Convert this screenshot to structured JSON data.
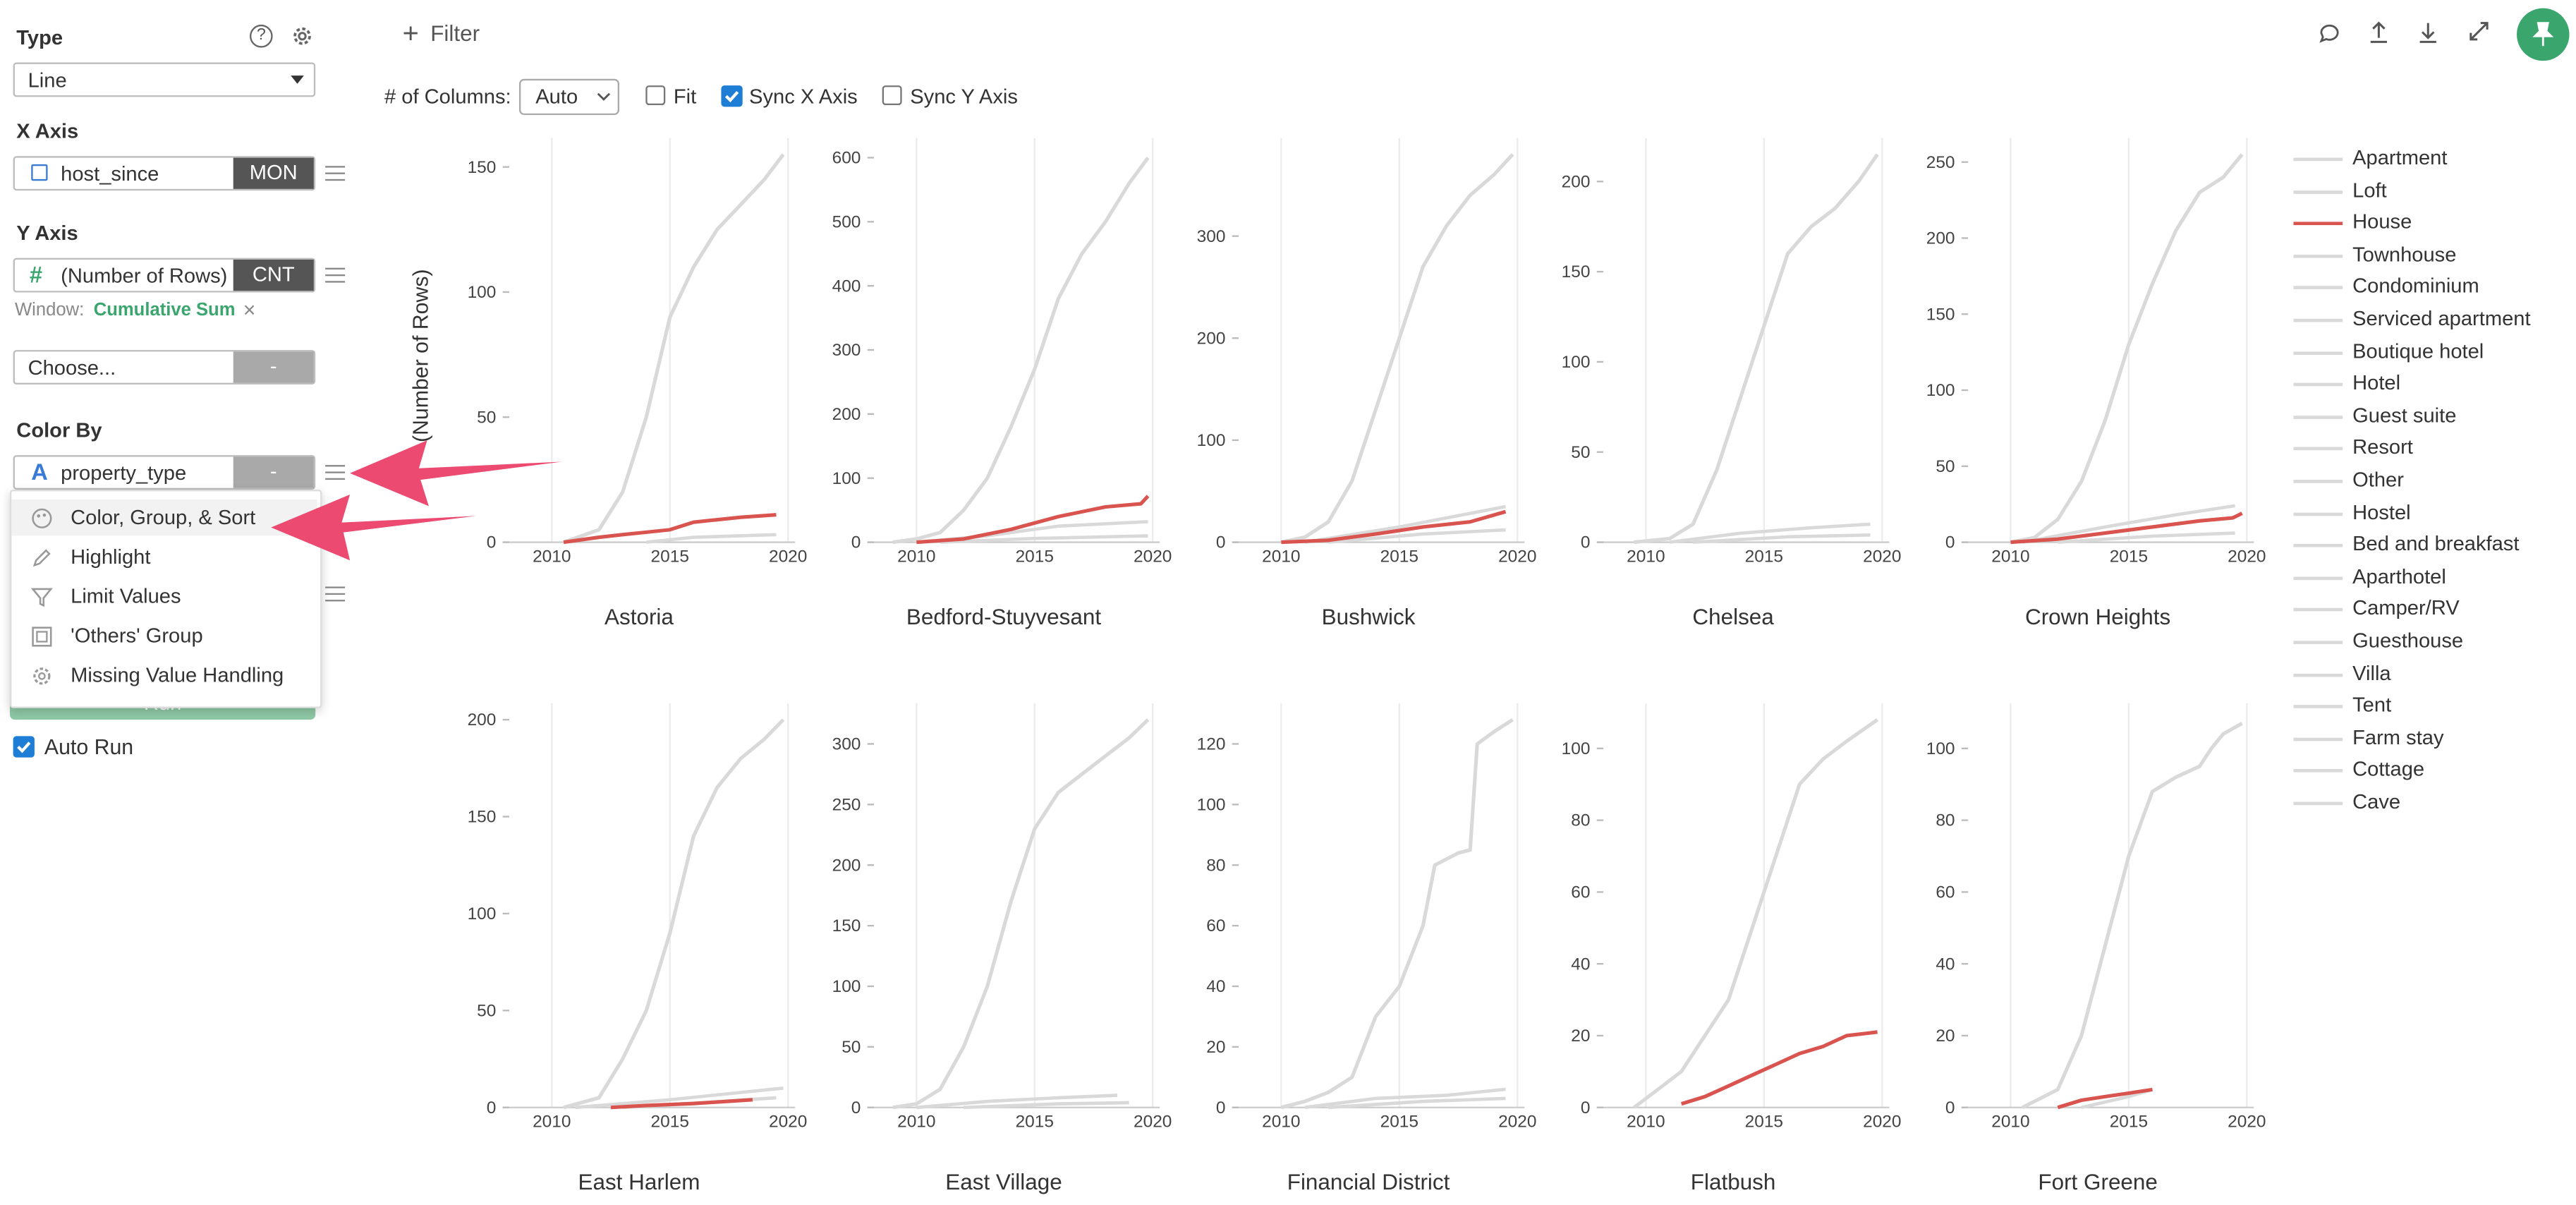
{
  "sidebar": {
    "type_title": "Type",
    "type_value": "Line",
    "x_axis_title": "X Axis",
    "x_field": "host_since",
    "x_agg": "MON",
    "y_axis_title": "Y Axis",
    "y_field": "(Number of Rows)",
    "y_agg": "CNT",
    "window_label": "Window:",
    "window_value": "Cumulative Sum",
    "window_clear": "×",
    "choose_placeholder": "Choose...",
    "choose_agg": "-",
    "color_by_title": "Color By",
    "color_field": "property_type",
    "color_agg": "-",
    "run_label": "Run",
    "auto_run_label": "Auto Run"
  },
  "menu": {
    "items": [
      {
        "label": "Color, Group, & Sort",
        "icon": "palette-icon"
      },
      {
        "label": "Highlight",
        "icon": "pencil-icon"
      },
      {
        "label": "Limit Values",
        "icon": "filter-icon"
      },
      {
        "label": "'Others' Group",
        "icon": "group-icon"
      },
      {
        "label": "Missing Value Handling",
        "icon": "gear-icon"
      }
    ]
  },
  "toolbar": {
    "filter_label": "Filter",
    "columns_label": "# of Columns:",
    "columns_value": "Auto",
    "fit_label": "Fit",
    "sync_x_label": "Sync X Axis",
    "sync_y_label": "Sync Y Axis",
    "fit_checked": false,
    "sync_x_checked": true,
    "sync_y_checked": false
  },
  "colors": {
    "accent_green": "#3aa66e",
    "highlight_red": "#d9534f",
    "other_grey": "#d9d9d9",
    "annotation_pink": "#ec4a70"
  },
  "chart_data": {
    "type": "line",
    "ylabel": "(Number of Rows)",
    "x_ticks": [
      2010,
      2015,
      2020
    ],
    "highlight_series": "House",
    "legend": [
      "Apartment",
      "Loft",
      "House",
      "Townhouse",
      "Condominium",
      "Serviced apartment",
      "Boutique hotel",
      "Hotel",
      "Guest suite",
      "Resort",
      "Other",
      "Hostel",
      "Bed and breakfast",
      "Aparthotel",
      "Camper/RV",
      "Guesthouse",
      "Villa",
      "Tent",
      "Farm stay",
      "Cottage",
      "Cave"
    ],
    "panels": [
      {
        "title": "Astoria",
        "y_ticks": [
          0,
          50,
          100,
          150
        ],
        "ymax": 155,
        "apartment": [
          [
            2010.5,
            0
          ],
          [
            2012,
            5
          ],
          [
            2013,
            20
          ],
          [
            2014,
            50
          ],
          [
            2015,
            90
          ],
          [
            2016,
            110
          ],
          [
            2017,
            125
          ],
          [
            2018,
            135
          ],
          [
            2019,
            145
          ],
          [
            2019.8,
            155
          ]
        ],
        "house": [
          [
            2010.5,
            0
          ],
          [
            2012,
            2
          ],
          [
            2013,
            3
          ],
          [
            2014,
            4
          ],
          [
            2015,
            5
          ],
          [
            2016,
            8
          ],
          [
            2017,
            9
          ],
          [
            2018,
            10
          ],
          [
            2019.5,
            11
          ]
        ],
        "others": [
          [
            [
              2014,
              0
            ],
            [
              2016,
              2
            ],
            [
              2019.5,
              3
            ]
          ]
        ]
      },
      {
        "title": "Bedford-Stuyvesant",
        "y_ticks": [
          0,
          100,
          200,
          300,
          400,
          500,
          600
        ],
        "ymax": 605,
        "apartment": [
          [
            2009,
            0
          ],
          [
            2010,
            5
          ],
          [
            2011,
            15
          ],
          [
            2012,
            50
          ],
          [
            2013,
            100
          ],
          [
            2014,
            180
          ],
          [
            2015,
            270
          ],
          [
            2016,
            380
          ],
          [
            2017,
            450
          ],
          [
            2018,
            500
          ],
          [
            2019,
            560
          ],
          [
            2019.8,
            600
          ]
        ],
        "house": [
          [
            2010,
            0
          ],
          [
            2012,
            5
          ],
          [
            2014,
            20
          ],
          [
            2016,
            40
          ],
          [
            2018,
            55
          ],
          [
            2019.5,
            60
          ],
          [
            2019.8,
            72
          ]
        ],
        "others": [
          [
            [
              2010,
              0
            ],
            [
              2013,
              10
            ],
            [
              2016,
              25
            ],
            [
              2019.8,
              32
            ]
          ],
          [
            [
              2011,
              0
            ],
            [
              2015,
              6
            ],
            [
              2019.8,
              10
            ]
          ]
        ]
      },
      {
        "title": "Bushwick",
        "y_ticks": [
          0,
          100,
          200,
          300
        ],
        "ymax": 380,
        "apartment": [
          [
            2010,
            0
          ],
          [
            2011,
            5
          ],
          [
            2012,
            20
          ],
          [
            2013,
            60
          ],
          [
            2014,
            130
          ],
          [
            2015,
            200
          ],
          [
            2016,
            270
          ],
          [
            2017,
            310
          ],
          [
            2018,
            340
          ],
          [
            2019,
            360
          ],
          [
            2019.8,
            380
          ]
        ],
        "house": [
          [
            2010,
            0
          ],
          [
            2012,
            2
          ],
          [
            2014,
            8
          ],
          [
            2016,
            15
          ],
          [
            2018,
            20
          ],
          [
            2019.5,
            30
          ]
        ],
        "others": [
          [
            [
              2011,
              0
            ],
            [
              2015,
              15
            ],
            [
              2019.5,
              35
            ]
          ],
          [
            [
              2012,
              0
            ],
            [
              2016,
              8
            ],
            [
              2019.5,
              12
            ]
          ]
        ]
      },
      {
        "title": "Chelsea",
        "y_ticks": [
          0,
          50,
          100,
          150,
          200
        ],
        "ymax": 215,
        "apartment": [
          [
            2009.5,
            0
          ],
          [
            2011,
            2
          ],
          [
            2012,
            10
          ],
          [
            2013,
            40
          ],
          [
            2014,
            80
          ],
          [
            2015,
            120
          ],
          [
            2016,
            160
          ],
          [
            2017,
            175
          ],
          [
            2018,
            185
          ],
          [
            2019,
            200
          ],
          [
            2019.8,
            215
          ]
        ],
        "house": [],
        "others": [
          [
            [
              2011,
              0
            ],
            [
              2014,
              5
            ],
            [
              2017,
              8
            ],
            [
              2019.5,
              10
            ]
          ],
          [
            [
              2012,
              0
            ],
            [
              2016,
              3
            ],
            [
              2019.5,
              4
            ]
          ]
        ]
      },
      {
        "title": "Crown Heights",
        "y_ticks": [
          0,
          50,
          100,
          150,
          200,
          250
        ],
        "ymax": 255,
        "apartment": [
          [
            2010,
            0
          ],
          [
            2011,
            3
          ],
          [
            2012,
            15
          ],
          [
            2013,
            40
          ],
          [
            2014,
            80
          ],
          [
            2015,
            130
          ],
          [
            2016,
            170
          ],
          [
            2017,
            205
          ],
          [
            2018,
            230
          ],
          [
            2019,
            240
          ],
          [
            2019.8,
            255
          ]
        ],
        "house": [
          [
            2010,
            0
          ],
          [
            2012,
            2
          ],
          [
            2014,
            6
          ],
          [
            2016,
            10
          ],
          [
            2018,
            14
          ],
          [
            2019.4,
            16
          ],
          [
            2019.8,
            19
          ]
        ],
        "others": [
          [
            [
              2010.5,
              0
            ],
            [
              2014,
              10
            ],
            [
              2017,
              18
            ],
            [
              2019.5,
              24
            ]
          ],
          [
            [
              2012,
              0
            ],
            [
              2016,
              4
            ],
            [
              2019.5,
              6
            ]
          ]
        ]
      },
      {
        "title": "East Harlem",
        "y_ticks": [
          0,
          50,
          100,
          150,
          200
        ],
        "ymax": 200,
        "apartment": [
          [
            2010.5,
            0
          ],
          [
            2012,
            5
          ],
          [
            2013,
            25
          ],
          [
            2014,
            50
          ],
          [
            2015,
            90
          ],
          [
            2016,
            140
          ],
          [
            2017,
            165
          ],
          [
            2018,
            180
          ],
          [
            2019,
            190
          ],
          [
            2019.8,
            200
          ]
        ],
        "house": [
          [
            2012.5,
            0
          ],
          [
            2014,
            1
          ],
          [
            2016,
            2
          ],
          [
            2018.5,
            4
          ]
        ],
        "others": [
          [
            [
              2011,
              0
            ],
            [
              2015,
              4
            ],
            [
              2019.8,
              10
            ]
          ],
          [
            [
              2013,
              0
            ],
            [
              2017,
              3
            ],
            [
              2019.5,
              5
            ]
          ]
        ]
      },
      {
        "title": "East Village",
        "y_ticks": [
          0,
          50,
          100,
          150,
          200,
          250,
          300
        ],
        "ymax": 320,
        "apartment": [
          [
            2009,
            0
          ],
          [
            2010,
            3
          ],
          [
            2011,
            15
          ],
          [
            2012,
            50
          ],
          [
            2013,
            100
          ],
          [
            2014,
            170
          ],
          [
            2015,
            230
          ],
          [
            2016,
            260
          ],
          [
            2017,
            275
          ],
          [
            2018,
            290
          ],
          [
            2019,
            305
          ],
          [
            2019.8,
            320
          ]
        ],
        "house": [],
        "others": [
          [
            [
              2010,
              0
            ],
            [
              2013,
              5
            ],
            [
              2016,
              8
            ],
            [
              2018.5,
              10
            ]
          ],
          [
            [
              2012,
              0
            ],
            [
              2016,
              3
            ],
            [
              2019,
              4
            ]
          ]
        ]
      },
      {
        "title": "Financial District",
        "y_ticks": [
          0,
          20,
          40,
          60,
          80,
          100,
          120
        ],
        "ymax": 128,
        "apartment": [
          [
            2010,
            0
          ],
          [
            2011,
            2
          ],
          [
            2012,
            5
          ],
          [
            2013,
            10
          ],
          [
            2014,
            30
          ],
          [
            2015,
            40
          ],
          [
            2016,
            60
          ],
          [
            2016.5,
            80
          ],
          [
            2017.5,
            84
          ],
          [
            2018,
            85
          ],
          [
            2018.3,
            120
          ],
          [
            2019,
            124
          ],
          [
            2019.8,
            128
          ]
        ],
        "house": [],
        "others": [
          [
            [
              2011,
              0
            ],
            [
              2014,
              3
            ],
            [
              2017,
              4
            ],
            [
              2019.5,
              6
            ]
          ],
          [
            [
              2012,
              0
            ],
            [
              2016,
              2
            ],
            [
              2019.5,
              3
            ]
          ]
        ]
      },
      {
        "title": "Flatbush",
        "y_ticks": [
          0,
          20,
          40,
          60,
          80,
          100
        ],
        "ymax": 108,
        "apartment": [
          [
            2009.5,
            0
          ],
          [
            2010.5,
            5
          ],
          [
            2011.5,
            10
          ],
          [
            2012.5,
            20
          ],
          [
            2013.5,
            30
          ],
          [
            2014.5,
            50
          ],
          [
            2015.5,
            70
          ],
          [
            2016.5,
            90
          ],
          [
            2017.5,
            97
          ],
          [
            2018.5,
            102
          ],
          [
            2019.8,
            108
          ]
        ],
        "house": [
          [
            2011.5,
            1
          ],
          [
            2012.5,
            3
          ],
          [
            2013.5,
            6
          ],
          [
            2014.5,
            9
          ],
          [
            2015.5,
            12
          ],
          [
            2016.5,
            15
          ],
          [
            2017.5,
            17
          ],
          [
            2018.5,
            20
          ],
          [
            2019.8,
            21
          ]
        ],
        "others": []
      },
      {
        "title": "Fort Greene",
        "y_ticks": [
          0,
          20,
          40,
          60,
          80,
          100
        ],
        "ymax": 108,
        "apartment": [
          [
            2010.5,
            0
          ],
          [
            2012,
            5
          ],
          [
            2013,
            20
          ],
          [
            2014,
            45
          ],
          [
            2015,
            70
          ],
          [
            2016,
            88
          ],
          [
            2017,
            92
          ],
          [
            2018,
            95
          ],
          [
            2018.5,
            100
          ],
          [
            2019,
            104
          ],
          [
            2019.8,
            107
          ]
        ],
        "house": [
          [
            2012,
            0
          ],
          [
            2013,
            2
          ],
          [
            2014,
            3
          ],
          [
            2015,
            4
          ],
          [
            2016,
            5
          ]
        ],
        "others": [
          [
            [
              2013,
              0
            ],
            [
              2015,
              3
            ],
            [
              2016,
              5
            ]
          ]
        ]
      }
    ]
  }
}
